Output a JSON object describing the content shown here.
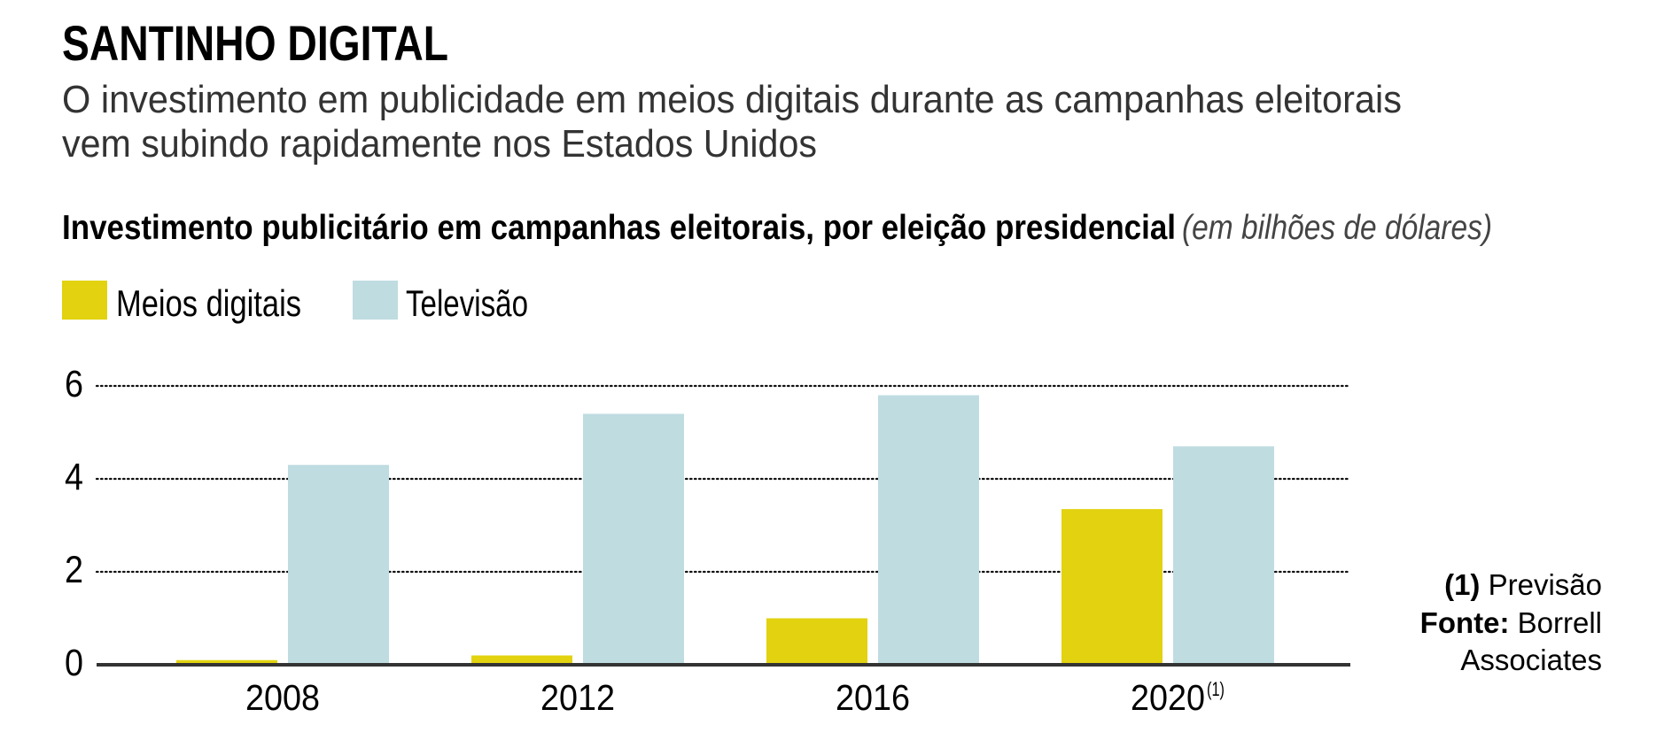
{
  "header": {
    "title": "SANTINHO DIGITAL",
    "subtitle_lines": [
      "O investimento em publicidade em meios digitais durante as campanhas eleitorais",
      "vem subindo rapidamente nos Estados Unidos"
    ]
  },
  "chart_data": {
    "type": "bar",
    "title": "Investimento publicitário em campanhas eleitorais, por eleição presidencial",
    "unit_note": "(em bilhões de dólares)",
    "xlabel": "",
    "ylabel": "",
    "categories": [
      "2008",
      "2012",
      "2016",
      "2020"
    ],
    "category_superscripts": [
      "",
      "",
      "",
      "(1)"
    ],
    "series": [
      {
        "name": "Meios digitais",
        "color": "#E2D20F",
        "values": [
          0.1,
          0.2,
          1.0,
          3.35
        ]
      },
      {
        "name": "Televisão",
        "color": "#BFDCE1",
        "values": [
          4.3,
          5.4,
          5.8,
          4.7
        ]
      }
    ],
    "ylim": [
      0,
      6
    ],
    "yticks": [
      0,
      2,
      4,
      6
    ],
    "ytick_labels": [
      "0",
      "2",
      "4",
      "6"
    ],
    "grid": true,
    "grid_style": "dotted",
    "legend": {
      "placement": "top-left"
    }
  },
  "footnotes": {
    "note_marker": "(1)",
    "note_text": "Previsão",
    "source_label": "Fonte:",
    "source_line1": "Borrell",
    "source_line2": "Associates"
  }
}
